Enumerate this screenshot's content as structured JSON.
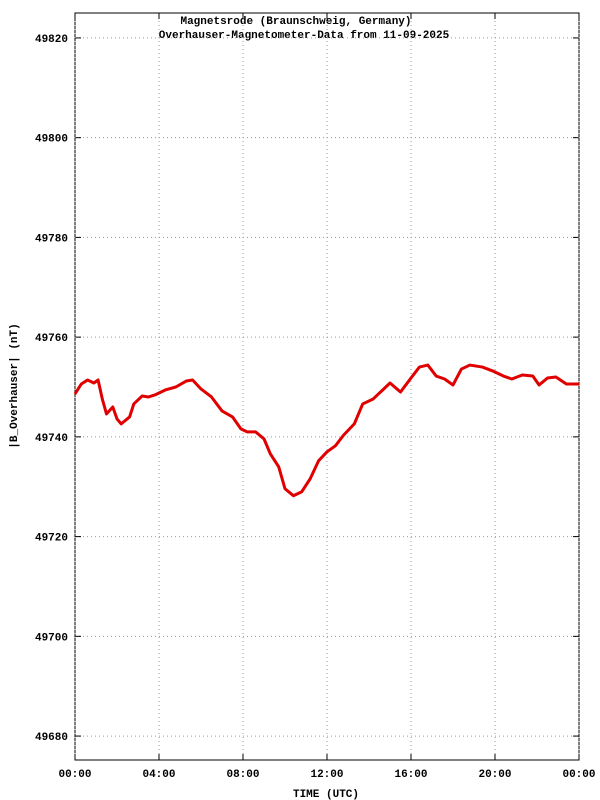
{
  "chart_data": {
    "type": "line",
    "title": "Magnetsrode (Braunschweig, Germany)",
    "subtitle": "Overhauser-Magnetometer-Data from 11-09-2025",
    "x_label": "TIME (UTC)",
    "y_label": "|B_Overhauser| (nT)",
    "color": "#e00000",
    "grid": true,
    "x": [
      0,
      0.3,
      0.6,
      0.9,
      1.1,
      1.3,
      1.5,
      1.8,
      2.0,
      2.2,
      2.6,
      2.8,
      3.2,
      3.5,
      3.8,
      4.3,
      4.8,
      5.3,
      5.6,
      6.0,
      6.5,
      7.0,
      7.5,
      7.9,
      8.2,
      8.6,
      9.0,
      9.3,
      9.7,
      10.0,
      10.4,
      10.8,
      11.2,
      11.6,
      12.0,
      12.4,
      12.8,
      13.3,
      13.7,
      14.2,
      14.6,
      15.0,
      15.5,
      16.0,
      16.4,
      16.8,
      17.2,
      17.6,
      18.0,
      18.4,
      18.8,
      19.4,
      19.9,
      20.4,
      20.8,
      21.3,
      21.8,
      22.1,
      22.5,
      22.9,
      23.4,
      24
    ],
    "values": [
      49748.6,
      49750.6,
      49751.4,
      49750.8,
      49751.4,
      49747.6,
      49744.6,
      49746,
      49743.6,
      49742.6,
      49744,
      49746.6,
      49748.2,
      49748,
      49748.4,
      49749.4,
      49750,
      49751.2,
      49751.4,
      49749.6,
      49748,
      49745.2,
      49744,
      49741.6,
      49741,
      49741,
      49739.6,
      49736.6,
      49734,
      49729.6,
      49728.2,
      49729,
      49731.6,
      49735.2,
      49737,
      49738.2,
      49740.4,
      49742.6,
      49746.6,
      49747.6,
      49749.2,
      49750.8,
      49749,
      49751.8,
      49754,
      49754.4,
      49752.2,
      49751.6,
      49750.4,
      49753.6,
      49754.4,
      49754,
      49753.2,
      49752.2,
      49751.6,
      49752.4,
      49752.2,
      49750.4,
      49751.8,
      49752,
      49750.6,
      49750.6
    ],
    "xlim": [
      0,
      24
    ],
    "xticks": [
      {
        "value": 0,
        "label": "00:00"
      },
      {
        "value": 4,
        "label": "04:00"
      },
      {
        "value": 8,
        "label": "08:00"
      },
      {
        "value": 12,
        "label": "12:00"
      },
      {
        "value": 16,
        "label": "16:00"
      },
      {
        "value": 20,
        "label": "20:00"
      },
      {
        "value": 24,
        "label": "00:00"
      }
    ],
    "ylim": [
      49675.2,
      49825
    ],
    "yticks": [
      49680,
      49700,
      49720,
      49740,
      49760,
      49780,
      49800,
      49820
    ]
  }
}
